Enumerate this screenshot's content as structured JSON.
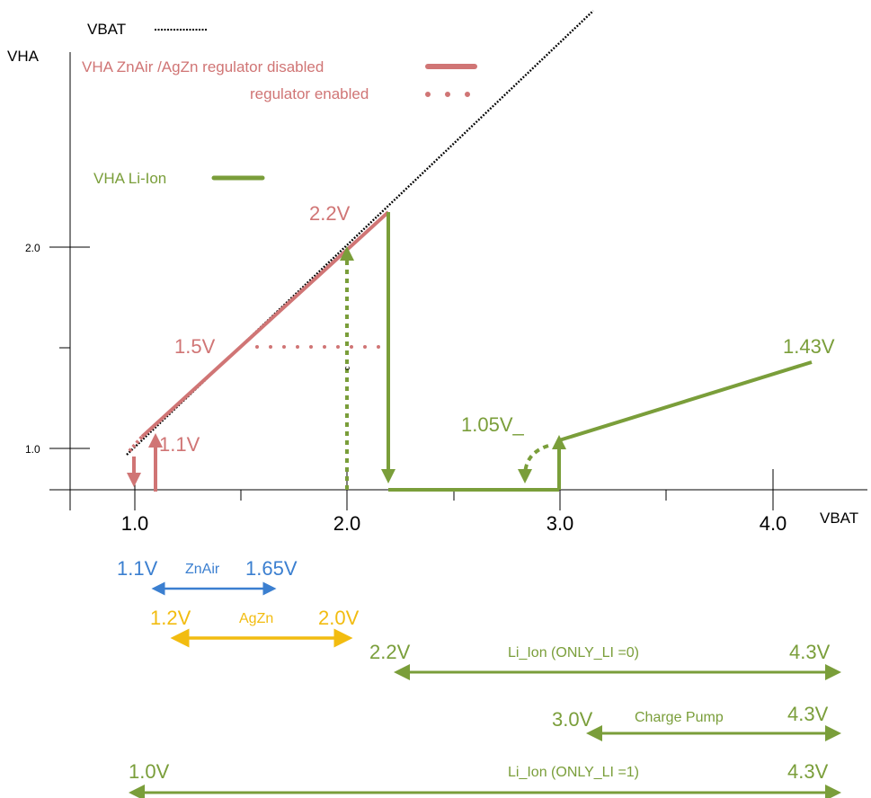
{
  "colors": {
    "black": "#000000",
    "red": "#D07575",
    "green": "#7A9E3A",
    "blue": "#3B7FD0",
    "yellow": "#F2BC10"
  },
  "legend": {
    "vbat": "VBAT",
    "znair_agzn_disabled": "VHA ZnAir /AgZn regulator disabled",
    "regulator_enabled": "regulator enabled",
    "li_ion": "VHA Li-Ion"
  },
  "axes": {
    "y_title": "VHA",
    "x_title": "VBAT",
    "y_tick_labels": [
      "1.0",
      "2.0"
    ],
    "x_tick_labels": [
      "1.0",
      "2.0",
      "3.0",
      "4.0"
    ]
  },
  "annotations": {
    "v1_1": "1.1V",
    "v1_5": "1.5V",
    "v2_2": "2.2V",
    "v1_05": "1.05V_",
    "v1_43": "1.43V",
    "marker": "c"
  },
  "chart_data": {
    "type": "line",
    "xlabel": "VBAT",
    "ylabel": "VHA",
    "xlim": [
      0.7,
      4.5
    ],
    "ylim": [
      0.8,
      3.0
    ],
    "x_ticks": [
      1.0,
      2.0,
      3.0,
      4.0
    ],
    "y_ticks": [
      1.0,
      2.0
    ],
    "series": [
      {
        "name": "VBAT",
        "style": "dotted",
        "color": "#000000",
        "x": [
          0.97,
          3.15
        ],
        "y": [
          0.97,
          3.15
        ]
      },
      {
        "name": "VHA ZnAir /AgZn regulator disabled",
        "style": "solid",
        "color": "#D07575",
        "x": [
          1.1,
          2.2
        ],
        "y": [
          1.1,
          2.2
        ]
      },
      {
        "name": "regulator enabled",
        "style": "dotted",
        "color": "#D07575",
        "x": [
          1.6,
          2.2
        ],
        "y": [
          1.5,
          1.5
        ]
      },
      {
        "name": "VHA Li-Ion",
        "style": "solid",
        "color": "#7A9E3A",
        "x": [
          2.2,
          2.2,
          3.0,
          3.0,
          4.2
        ],
        "y": [
          2.2,
          0.8,
          0.8,
          1.05,
          1.43
        ]
      }
    ]
  },
  "ranges": [
    {
      "id": "znair",
      "label": "ZnAir",
      "left": "1.1V",
      "right": "1.65V",
      "color": "#3B7FD0"
    },
    {
      "id": "agzn",
      "label": "AgZn",
      "left": "1.2V",
      "right": "2.0V",
      "color": "#F2BC10"
    },
    {
      "id": "li-ion-0",
      "label": "Li_Ion (ONLY_LI =0)",
      "left": "2.2V",
      "right": "4.3V",
      "color": "#7A9E3A"
    },
    {
      "id": "charge-pump",
      "label": "Charge Pump",
      "left": "3.0V",
      "right": "4.3V",
      "color": "#7A9E3A"
    },
    {
      "id": "li-ion-1",
      "label": "Li_Ion (ONLY_LI =1)",
      "left": "1.0V",
      "right": "4.3V",
      "color": "#7A9E3A"
    }
  ]
}
